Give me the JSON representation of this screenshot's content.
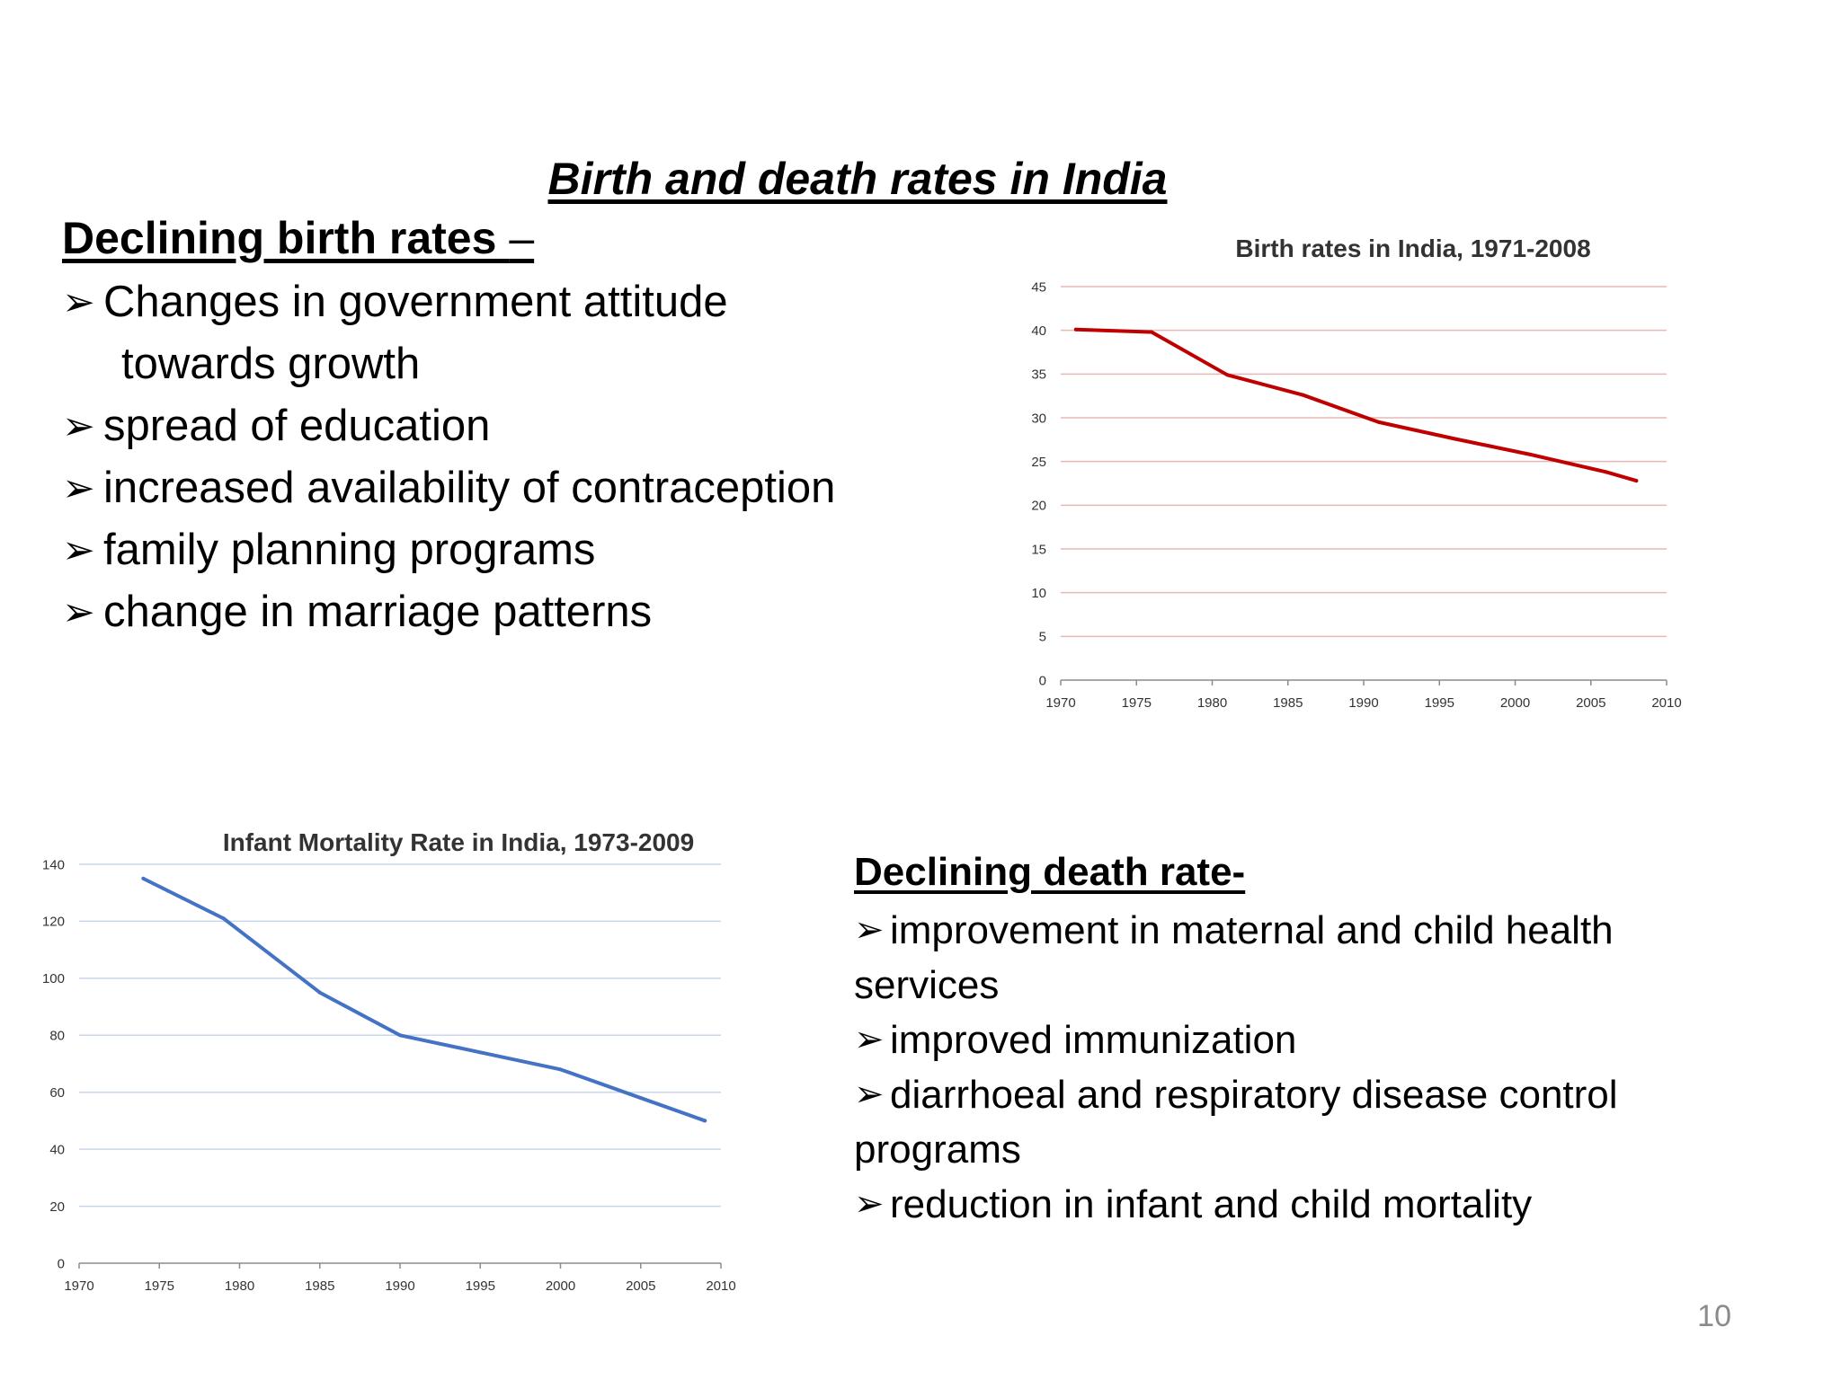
{
  "slide": {
    "title": "Birth and death rates in India",
    "page_number": "10"
  },
  "birth_section": {
    "heading": "Declining birth rates ",
    "heading_tail": "–",
    "bullet_glyph": "➢",
    "bullets": [
      {
        "line1": "Changes in government attitude",
        "line2": "towards growth"
      },
      {
        "line1": "spread of education"
      },
      {
        "line1": "increased availability of contraception"
      },
      {
        "line1": "family planning programs"
      },
      {
        "line1": "change in marriage patterns"
      }
    ]
  },
  "death_section": {
    "heading": "Declining death rate-",
    "bullet_glyph": "➢",
    "bullets": [
      "improvement in maternal and child health services",
      "improved immunization",
      "diarrhoeal and respiratory disease control programs",
      "reduction in infant and child mortality"
    ]
  },
  "chart_data": [
    {
      "type": "line",
      "title": "Birth rates in India, 1971-2008",
      "xlabel": "",
      "ylabel": "",
      "xlim": [
        1970,
        2010
      ],
      "ylim": [
        0,
        45
      ],
      "xticks": [
        1970,
        1975,
        1980,
        1985,
        1990,
        1995,
        2000,
        2005,
        2010
      ],
      "yticks": [
        0,
        5,
        10,
        15,
        20,
        25,
        30,
        35,
        40,
        45
      ],
      "grid": true,
      "line_color": "#C00000",
      "grid_color": "#E6B8B8",
      "x": [
        1971,
        1976,
        1981,
        1986,
        1991,
        1996,
        2001,
        2006,
        2008
      ],
      "y": [
        40.1,
        39.8,
        34.9,
        32.6,
        29.5,
        27.6,
        25.8,
        23.8,
        22.8
      ]
    },
    {
      "type": "line",
      "title": "Infant Mortality Rate in India, 1973-2009",
      "xlabel": "",
      "ylabel": "",
      "xlim": [
        1970,
        2010
      ],
      "ylim": [
        0,
        140
      ],
      "xticks": [
        1970,
        1975,
        1980,
        1985,
        1990,
        1995,
        2000,
        2005,
        2010
      ],
      "yticks": [
        0,
        20,
        40,
        60,
        80,
        100,
        120,
        140
      ],
      "grid": true,
      "line_color": "#4472C4",
      "grid_color": "#C9D7EC",
      "x": [
        1974,
        1979,
        1985,
        1990,
        1995,
        2000,
        2005,
        2009
      ],
      "y": [
        135,
        121,
        95,
        80,
        74,
        68,
        58,
        50
      ]
    }
  ]
}
